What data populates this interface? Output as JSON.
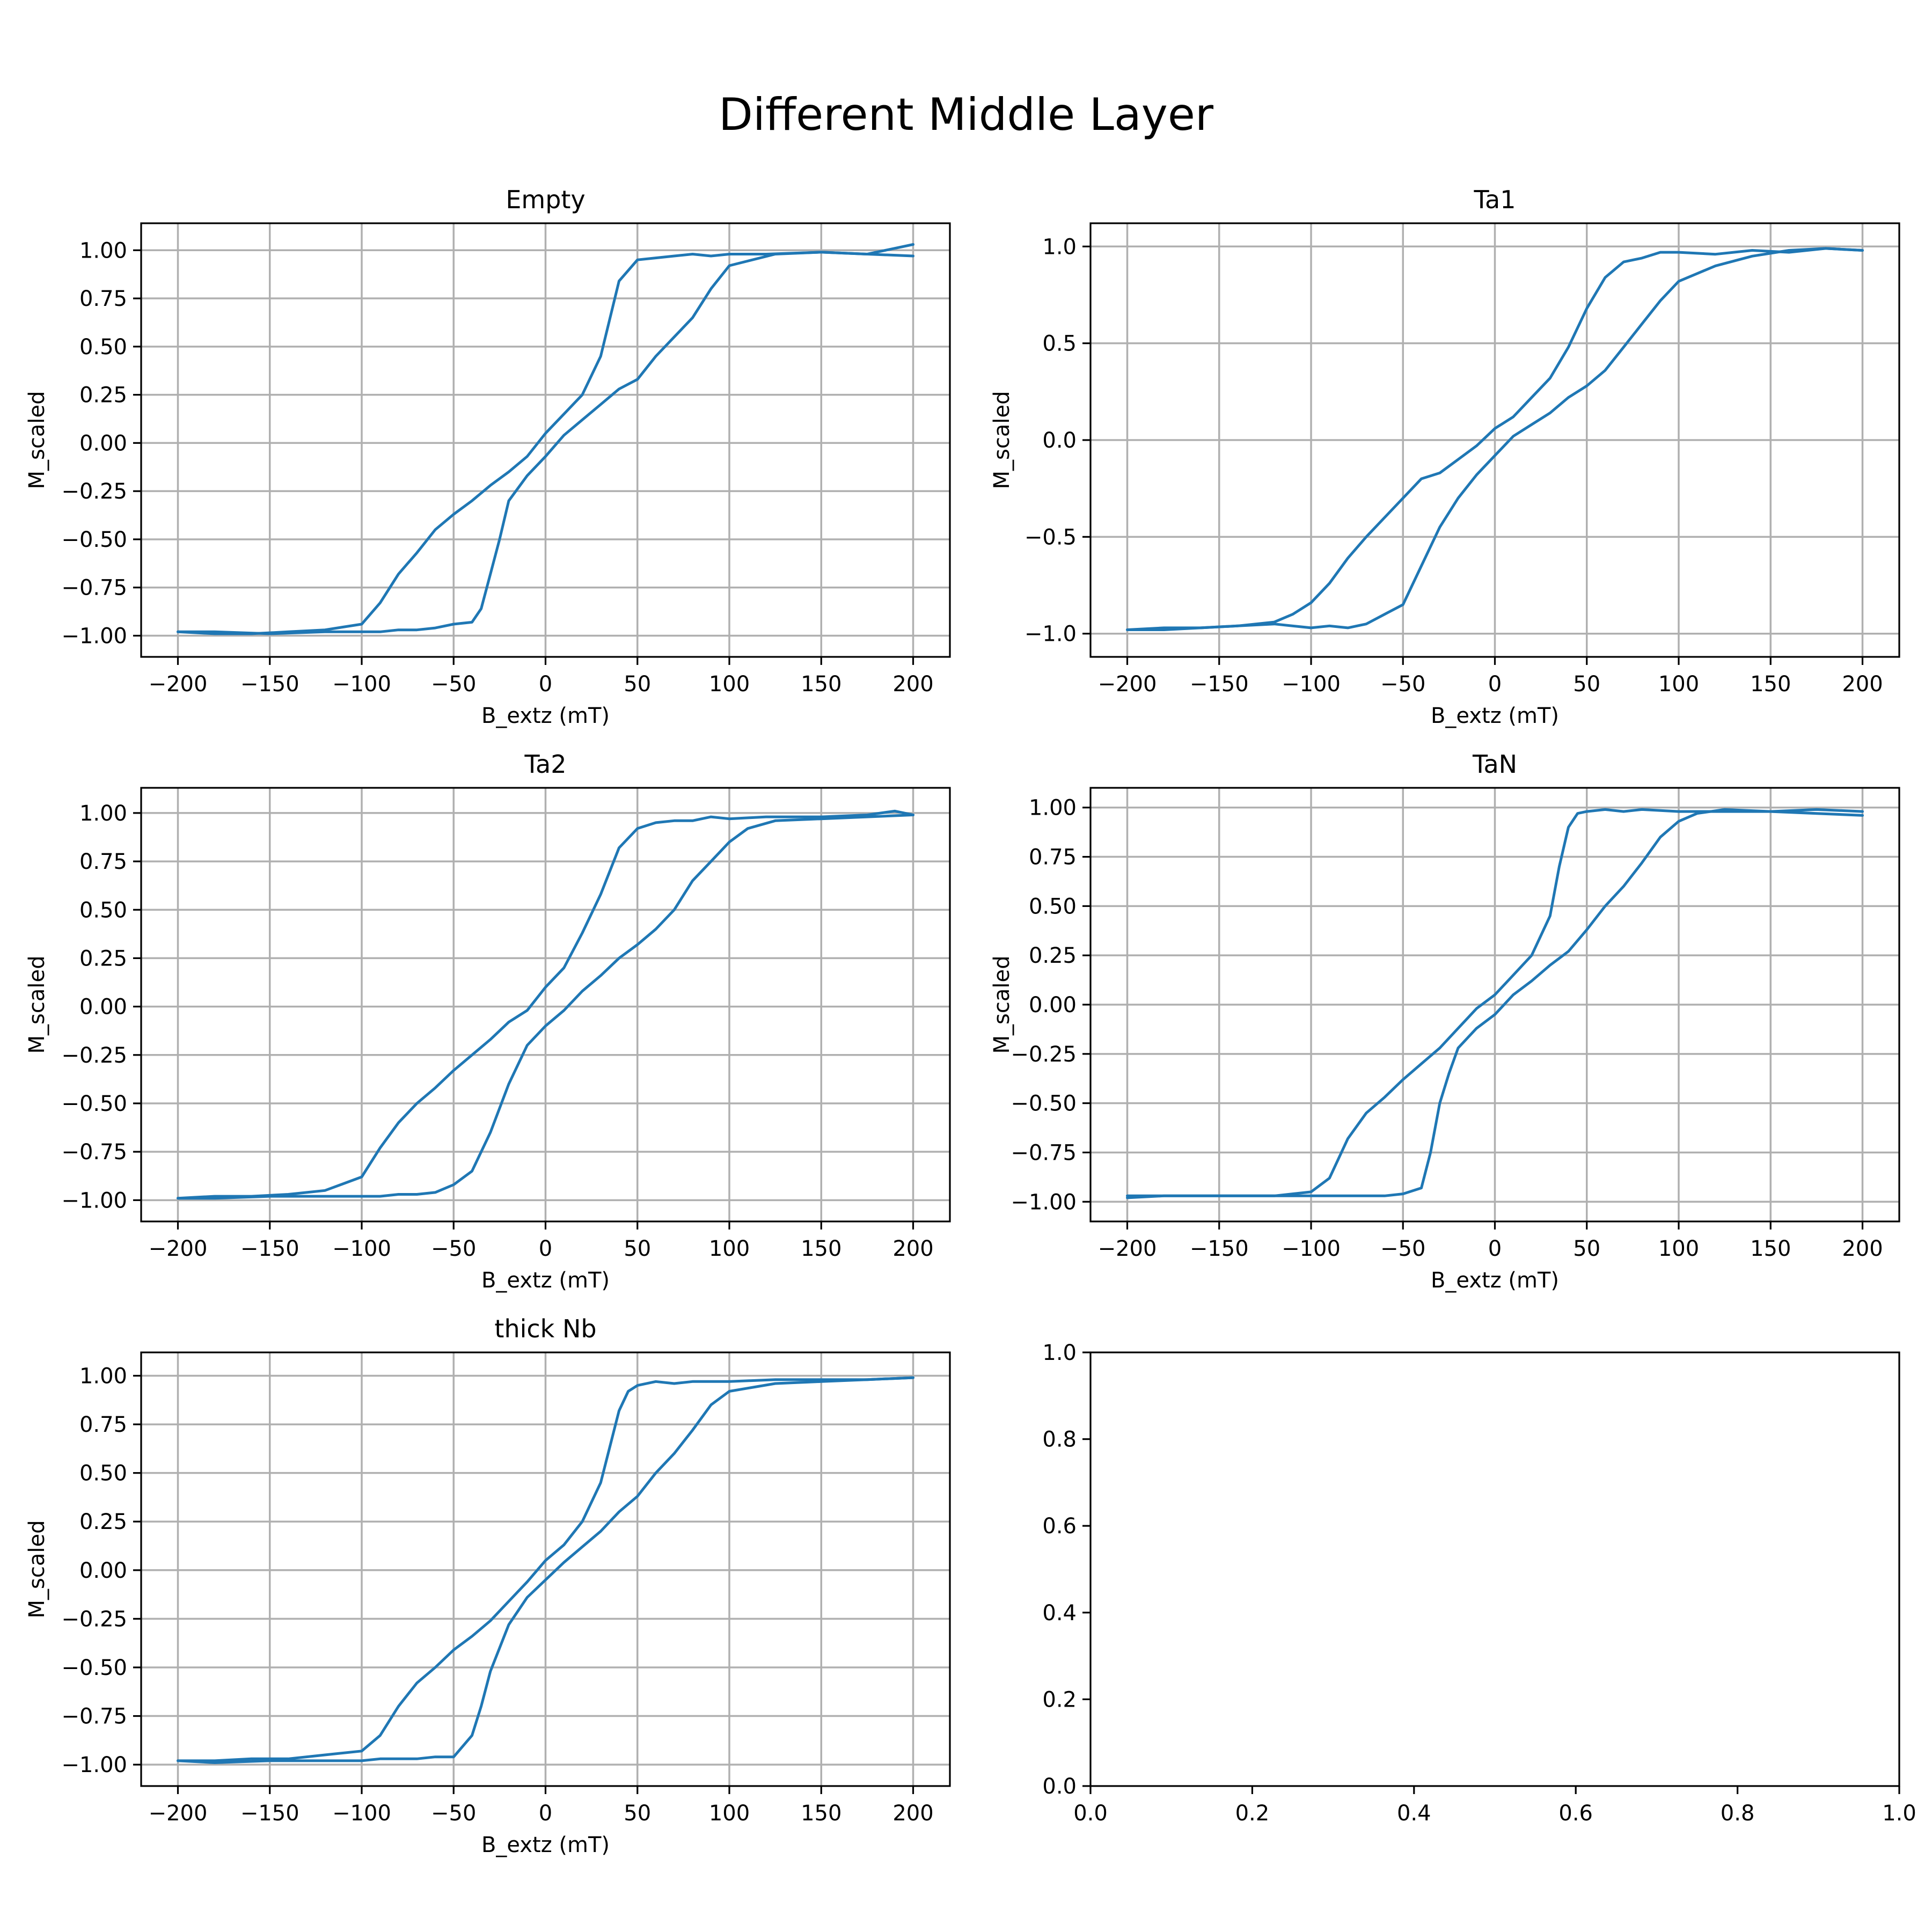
{
  "figure": {
    "suptitle": "Different Middle Layer",
    "line_color": "#1f77b4"
  },
  "chart_data": [
    {
      "type": "line",
      "title": "Empty",
      "xlabel": "B_extz (mT)",
      "ylabel": "M_scaled",
      "xlim": [
        -220,
        220
      ],
      "ylim": [
        -1.11,
        1.14
      ],
      "xticks": [
        -200,
        -150,
        -100,
        -50,
        0,
        50,
        100,
        150,
        200
      ],
      "xtick_labels": [
        "−200",
        "−150",
        "−100",
        "−50",
        "0",
        "50",
        "100",
        "150",
        "200"
      ],
      "yticks": [
        1.0,
        0.75,
        0.5,
        0.25,
        0.0,
        -0.25,
        -0.5,
        -0.75,
        -1.0
      ],
      "ytick_labels": [
        "1.00",
        "0.75",
        "0.50",
        "0.25",
        "0.00",
        "−0.25",
        "−0.50",
        "−0.75",
        "−1.00"
      ],
      "grid": true,
      "series": [
        {
          "x": [
            -200,
            -180,
            -160,
            -140,
            -120,
            -100,
            -90,
            -80,
            -70,
            -60,
            -50,
            -40,
            -30,
            -20,
            -10,
            0,
            10,
            20,
            30,
            40,
            50,
            60,
            70,
            80,
            90,
            100,
            120,
            150,
            175,
            200
          ],
          "y": [
            -0.98,
            -0.99,
            -0.99,
            -0.98,
            -0.97,
            -0.94,
            -0.83,
            -0.68,
            -0.57,
            -0.45,
            -0.37,
            -0.3,
            -0.22,
            -0.15,
            -0.07,
            0.05,
            0.15,
            0.25,
            0.45,
            0.84,
            0.95,
            0.96,
            0.97,
            0.98,
            0.97,
            0.98,
            0.98,
            0.99,
            0.98,
            1.03
          ]
        },
        {
          "x": [
            200,
            175,
            150,
            125,
            100,
            90,
            80,
            70,
            60,
            50,
            40,
            30,
            20,
            10,
            0,
            -10,
            -20,
            -25,
            -30,
            -35,
            -40,
            -50,
            -60,
            -70,
            -80,
            -90,
            -100,
            -120,
            -150,
            -180,
            -200
          ],
          "y": [
            0.97,
            0.98,
            0.99,
            0.98,
            0.92,
            0.8,
            0.65,
            0.55,
            0.45,
            0.33,
            0.28,
            0.2,
            0.12,
            0.04,
            -0.07,
            -0.17,
            -0.3,
            -0.5,
            -0.68,
            -0.86,
            -0.93,
            -0.94,
            -0.96,
            -0.97,
            -0.97,
            -0.98,
            -0.98,
            -0.98,
            -0.99,
            -0.98,
            -0.98
          ]
        }
      ]
    },
    {
      "type": "line",
      "title": "Ta1",
      "xlabel": "B_extz (mT)",
      "ylabel": "M_scaled",
      "xlim": [
        -220,
        220
      ],
      "ylim": [
        -1.12,
        1.12
      ],
      "xticks": [
        -200,
        -150,
        -100,
        -50,
        0,
        50,
        100,
        150,
        200
      ],
      "xtick_labels": [
        "−200",
        "−150",
        "−100",
        "−50",
        "0",
        "50",
        "100",
        "150",
        "200"
      ],
      "yticks": [
        1.0,
        0.5,
        0.0,
        -0.5,
        -1.0
      ],
      "ytick_labels": [
        "1.0",
        "0.5",
        "0.0",
        "−0.5",
        "−1.0"
      ],
      "grid": true,
      "series": [
        {
          "x": [
            -200,
            -180,
            -160,
            -140,
            -120,
            -110,
            -100,
            -90,
            -80,
            -70,
            -60,
            -50,
            -40,
            -30,
            -20,
            -10,
            0,
            10,
            20,
            30,
            40,
            50,
            60,
            70,
            80,
            90,
            100,
            120,
            140,
            160,
            180,
            200
          ],
          "y": [
            -0.98,
            -0.97,
            -0.97,
            -0.96,
            -0.94,
            -0.9,
            -0.84,
            -0.74,
            -0.61,
            -0.5,
            -0.4,
            -0.3,
            -0.2,
            -0.17,
            -0.1,
            -0.03,
            0.06,
            0.12,
            0.22,
            0.32,
            0.48,
            0.68,
            0.84,
            0.92,
            0.94,
            0.97,
            0.97,
            0.96,
            0.98,
            0.97,
            0.99,
            0.98
          ]
        },
        {
          "x": [
            200,
            180,
            160,
            140,
            120,
            100,
            90,
            80,
            70,
            60,
            50,
            40,
            30,
            20,
            10,
            0,
            -10,
            -20,
            -30,
            -40,
            -50,
            -60,
            -70,
            -80,
            -90,
            -100,
            -120,
            -140,
            -160,
            -180,
            -200
          ],
          "y": [
            0.98,
            0.99,
            0.98,
            0.95,
            0.9,
            0.82,
            0.72,
            0.6,
            0.48,
            0.36,
            0.28,
            0.22,
            0.14,
            0.08,
            0.02,
            -0.08,
            -0.18,
            -0.3,
            -0.45,
            -0.65,
            -0.85,
            -0.9,
            -0.95,
            -0.97,
            -0.96,
            -0.97,
            -0.95,
            -0.96,
            -0.97,
            -0.98,
            -0.98
          ]
        }
      ]
    },
    {
      "type": "line",
      "title": "Ta2",
      "xlabel": "B_extz (mT)",
      "ylabel": "M_scaled",
      "xlim": [
        -220,
        220
      ],
      "ylim": [
        -1.11,
        1.13
      ],
      "xticks": [
        -200,
        -150,
        -100,
        -50,
        0,
        50,
        100,
        150,
        200
      ],
      "xtick_labels": [
        "−200",
        "−150",
        "−100",
        "−50",
        "0",
        "50",
        "100",
        "150",
        "200"
      ],
      "yticks": [
        1.0,
        0.75,
        0.5,
        0.25,
        0.0,
        -0.25,
        -0.5,
        -0.75,
        -1.0
      ],
      "ytick_labels": [
        "1.00",
        "0.75",
        "0.50",
        "0.25",
        "0.00",
        "−0.25",
        "−0.50",
        "−0.75",
        "−1.00"
      ],
      "grid": true,
      "series": [
        {
          "x": [
            -200,
            -180,
            -160,
            -140,
            -120,
            -100,
            -90,
            -80,
            -70,
            -60,
            -50,
            -40,
            -30,
            -20,
            -10,
            0,
            10,
            20,
            30,
            40,
            50,
            60,
            70,
            80,
            90,
            100,
            120,
            150,
            175,
            190,
            200
          ],
          "y": [
            -0.99,
            -0.98,
            -0.98,
            -0.97,
            -0.95,
            -0.88,
            -0.73,
            -0.6,
            -0.5,
            -0.42,
            -0.33,
            -0.25,
            -0.17,
            -0.08,
            -0.02,
            0.1,
            0.2,
            0.38,
            0.58,
            0.82,
            0.92,
            0.95,
            0.96,
            0.96,
            0.98,
            0.97,
            0.98,
            0.98,
            0.99,
            1.01,
            0.99
          ]
        },
        {
          "x": [
            200,
            175,
            150,
            125,
            110,
            100,
            90,
            80,
            70,
            60,
            50,
            40,
            30,
            20,
            10,
            0,
            -10,
            -20,
            -30,
            -40,
            -50,
            -60,
            -70,
            -80,
            -90,
            -100,
            -120,
            -150,
            -180,
            -200
          ],
          "y": [
            0.99,
            0.98,
            0.97,
            0.96,
            0.92,
            0.85,
            0.75,
            0.65,
            0.5,
            0.4,
            0.32,
            0.25,
            0.16,
            0.08,
            -0.02,
            -0.1,
            -0.2,
            -0.4,
            -0.65,
            -0.85,
            -0.92,
            -0.96,
            -0.97,
            -0.97,
            -0.98,
            -0.98,
            -0.98,
            -0.98,
            -0.99,
            -0.99
          ]
        }
      ]
    },
    {
      "type": "line",
      "title": "TaN",
      "xlabel": "B_extz (mT)",
      "ylabel": "M_scaled",
      "xlim": [
        -220,
        220
      ],
      "ylim": [
        -1.1,
        1.1
      ],
      "xticks": [
        -200,
        -150,
        -100,
        -50,
        0,
        50,
        100,
        150,
        200
      ],
      "xtick_labels": [
        "−200",
        "−150",
        "−100",
        "−50",
        "0",
        "50",
        "100",
        "150",
        "200"
      ],
      "yticks": [
        1.0,
        0.75,
        0.5,
        0.25,
        0.0,
        -0.25,
        -0.5,
        -0.75,
        -1.0
      ],
      "ytick_labels": [
        "1.00",
        "0.75",
        "0.50",
        "0.25",
        "0.00",
        "−0.25",
        "−0.50",
        "−0.75",
        "−1.00"
      ],
      "grid": true,
      "series": [
        {
          "x": [
            -200,
            -180,
            -160,
            -140,
            -120,
            -100,
            -90,
            -80,
            -70,
            -60,
            -50,
            -40,
            -30,
            -20,
            -10,
            0,
            10,
            20,
            30,
            35,
            40,
            45,
            50,
            60,
            70,
            80,
            100,
            125,
            150,
            175,
            200
          ],
          "y": [
            -0.98,
            -0.97,
            -0.97,
            -0.97,
            -0.97,
            -0.95,
            -0.88,
            -0.68,
            -0.55,
            -0.47,
            -0.38,
            -0.3,
            -0.22,
            -0.12,
            -0.02,
            0.05,
            0.15,
            0.25,
            0.45,
            0.7,
            0.9,
            0.97,
            0.98,
            0.99,
            0.98,
            0.99,
            0.98,
            0.98,
            0.98,
            0.99,
            0.98
          ]
        },
        {
          "x": [
            200,
            175,
            150,
            125,
            110,
            100,
            90,
            80,
            70,
            60,
            50,
            40,
            30,
            20,
            10,
            0,
            -10,
            -20,
            -25,
            -30,
            -35,
            -40,
            -50,
            -60,
            -80,
            -100,
            -120,
            -150,
            -180,
            -200
          ],
          "y": [
            0.96,
            0.97,
            0.98,
            0.99,
            0.97,
            0.93,
            0.85,
            0.72,
            0.6,
            0.5,
            0.38,
            0.27,
            0.2,
            0.12,
            0.05,
            -0.05,
            -0.12,
            -0.22,
            -0.35,
            -0.5,
            -0.75,
            -0.93,
            -0.96,
            -0.97,
            -0.97,
            -0.97,
            -0.97,
            -0.97,
            -0.97,
            -0.97
          ]
        }
      ]
    },
    {
      "type": "line",
      "title": "thick Nb",
      "xlabel": "B_extz (mT)",
      "ylabel": "M_scaled",
      "xlim": [
        -220,
        220
      ],
      "ylim": [
        -1.11,
        1.12
      ],
      "xticks": [
        -200,
        -150,
        -100,
        -50,
        0,
        50,
        100,
        150,
        200
      ],
      "xtick_labels": [
        "−200",
        "−150",
        "−100",
        "−50",
        "0",
        "50",
        "100",
        "150",
        "200"
      ],
      "yticks": [
        1.0,
        0.75,
        0.5,
        0.25,
        0.0,
        -0.25,
        -0.5,
        -0.75,
        -1.0
      ],
      "ytick_labels": [
        "1.00",
        "0.75",
        "0.50",
        "0.25",
        "0.00",
        "−0.25",
        "−0.50",
        "−0.75",
        "−1.00"
      ],
      "grid": true,
      "series": [
        {
          "x": [
            -200,
            -180,
            -160,
            -140,
            -120,
            -100,
            -90,
            -80,
            -70,
            -60,
            -50,
            -40,
            -30,
            -20,
            -10,
            0,
            10,
            20,
            30,
            40,
            45,
            50,
            60,
            70,
            80,
            100,
            125,
            150,
            175,
            200
          ],
          "y": [
            -0.98,
            -0.98,
            -0.97,
            -0.97,
            -0.95,
            -0.93,
            -0.85,
            -0.7,
            -0.58,
            -0.5,
            -0.41,
            -0.34,
            -0.26,
            -0.16,
            -0.06,
            0.05,
            0.13,
            0.25,
            0.45,
            0.82,
            0.92,
            0.95,
            0.97,
            0.96,
            0.97,
            0.97,
            0.98,
            0.98,
            0.98,
            0.99
          ]
        },
        {
          "x": [
            200,
            175,
            150,
            125,
            100,
            90,
            80,
            70,
            60,
            50,
            40,
            30,
            20,
            10,
            0,
            -10,
            -20,
            -30,
            -35,
            -40,
            -50,
            -60,
            -70,
            -80,
            -90,
            -100,
            -120,
            -150,
            -180,
            -200
          ],
          "y": [
            0.99,
            0.98,
            0.97,
            0.96,
            0.92,
            0.85,
            0.72,
            0.6,
            0.5,
            0.38,
            0.3,
            0.2,
            0.12,
            0.04,
            -0.05,
            -0.14,
            -0.28,
            -0.52,
            -0.7,
            -0.85,
            -0.96,
            -0.96,
            -0.97,
            -0.97,
            -0.97,
            -0.98,
            -0.98,
            -0.98,
            -0.99,
            -0.98
          ]
        }
      ]
    },
    {
      "type": "line",
      "title": "",
      "xlabel": "",
      "ylabel": "",
      "xlim": [
        0,
        1
      ],
      "ylim": [
        0,
        1
      ],
      "xticks": [
        0.0,
        0.2,
        0.4,
        0.6,
        0.8,
        1.0
      ],
      "xtick_labels": [
        "0.0",
        "0.2",
        "0.4",
        "0.6",
        "0.8",
        "1.0"
      ],
      "yticks": [
        0.0,
        0.2,
        0.4,
        0.6,
        0.8,
        1.0
      ],
      "ytick_labels": [
        "0.0",
        "0.2",
        "0.4",
        "0.6",
        "0.8",
        "1.0"
      ],
      "grid": false,
      "series": []
    }
  ]
}
